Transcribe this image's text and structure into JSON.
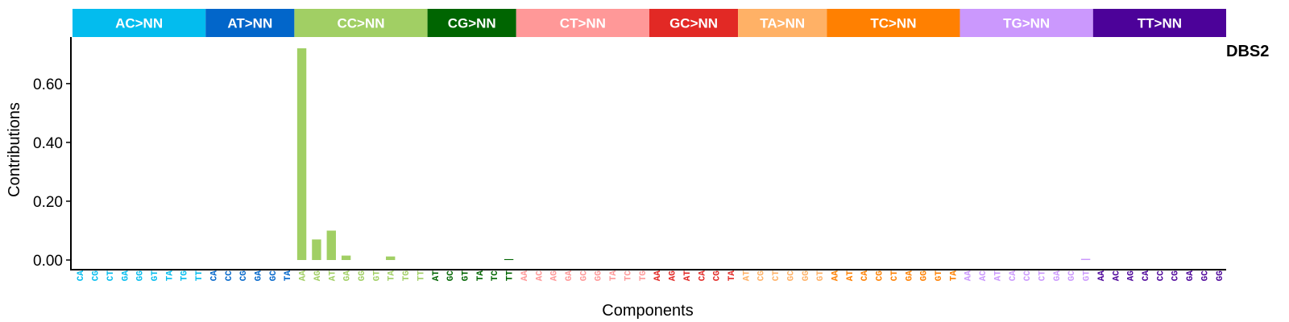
{
  "chart_data": {
    "type": "bar",
    "title": "DBS2",
    "xlabel": "Components",
    "ylabel": "Contributions",
    "ylim": [
      0,
      0.72
    ],
    "yticks": [
      0,
      0.2,
      0.4,
      0.6
    ],
    "ytick_labels": [
      "0.00",
      "0.20",
      "0.40",
      "0.60"
    ],
    "grid": false,
    "groups": [
      {
        "label": "AC>NN",
        "color": "#03BCEE",
        "categories": [
          "CA",
          "CG",
          "CT",
          "GA",
          "GG",
          "GT",
          "TA",
          "TG",
          "TT"
        ],
        "values": [
          0,
          0,
          0,
          0,
          0,
          0,
          0,
          0,
          0
        ]
      },
      {
        "label": "AT>NN",
        "color": "#0266CA",
        "categories": [
          "CA",
          "CC",
          "CG",
          "GA",
          "GC",
          "TA"
        ],
        "values": [
          0,
          0,
          0,
          0,
          0,
          0
        ]
      },
      {
        "label": "CC>NN",
        "color": "#A1CF64",
        "categories": [
          "AA",
          "AG",
          "AT",
          "GA",
          "GG",
          "GT",
          "TA",
          "TG",
          "TT"
        ],
        "values": [
          0.72,
          0.07,
          0.1,
          0.015,
          0,
          0,
          0.012,
          0,
          0
        ]
      },
      {
        "label": "CG>NN",
        "color": "#006501",
        "categories": [
          "AT",
          "GC",
          "GT",
          "TA",
          "TC",
          "TT"
        ],
        "values": [
          0,
          0,
          0,
          0,
          0,
          0.003
        ]
      },
      {
        "label": "CT>NN",
        "color": "#FF9898",
        "categories": [
          "AA",
          "AC",
          "AG",
          "GA",
          "GC",
          "GG",
          "TA",
          "TC",
          "TG"
        ],
        "values": [
          0,
          0,
          0,
          0,
          0,
          0,
          0,
          0,
          0
        ]
      },
      {
        "label": "GC>NN",
        "color": "#E22925",
        "categories": [
          "AA",
          "AG",
          "AT",
          "CA",
          "CG",
          "TA"
        ],
        "values": [
          0,
          0,
          0,
          0,
          0,
          0
        ]
      },
      {
        "label": "TA>NN",
        "color": "#FFB166",
        "categories": [
          "AT",
          "CG",
          "CT",
          "GC",
          "GG",
          "GT"
        ],
        "values": [
          0,
          0,
          0,
          0,
          0,
          0
        ]
      },
      {
        "label": "TC>NN",
        "color": "#FF8001",
        "categories": [
          "AA",
          "AT",
          "CA",
          "CG",
          "CT",
          "GA",
          "GG",
          "GT",
          "TA"
        ],
        "values": [
          0,
          0,
          0,
          0,
          0,
          0,
          0,
          0,
          0
        ]
      },
      {
        "label": "TG>NN",
        "color": "#CB98FD",
        "categories": [
          "AA",
          "AC",
          "AT",
          "CA",
          "CC",
          "CT",
          "GA",
          "GC",
          "GT"
        ],
        "values": [
          0,
          0,
          0,
          0,
          0,
          0,
          0,
          0,
          0.004
        ]
      },
      {
        "label": "TT>NN",
        "color": "#4C0299",
        "categories": [
          "AA",
          "AC",
          "AG",
          "CA",
          "CC",
          "CG",
          "GA",
          "GC",
          "GG"
        ],
        "values": [
          0,
          0,
          0,
          0,
          0,
          0,
          0,
          0,
          0
        ]
      }
    ]
  }
}
